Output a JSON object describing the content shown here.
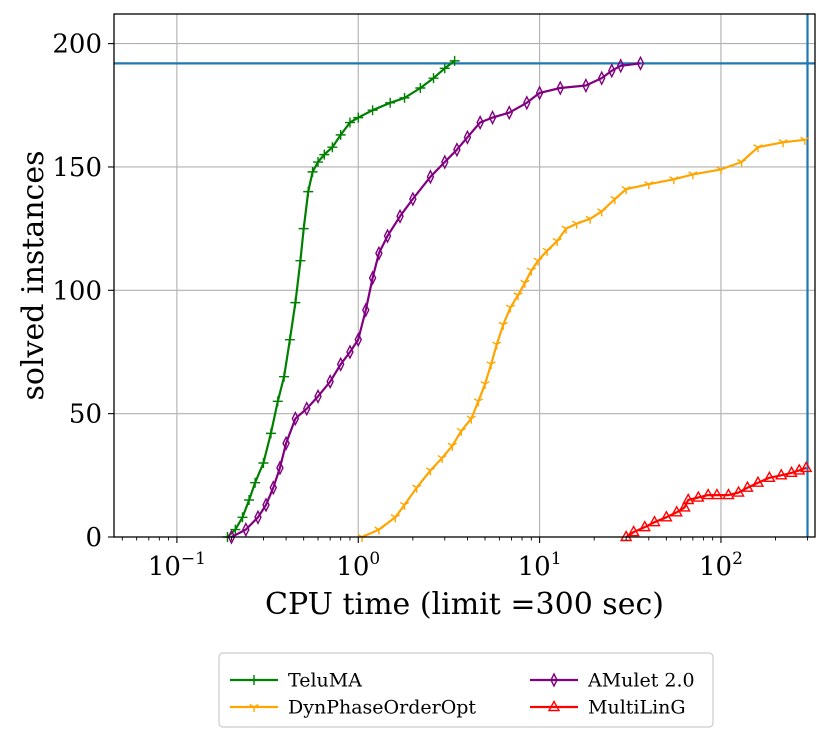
{
  "chart_data": {
    "type": "line",
    "title": "",
    "xlabel": "CPU time (limit =300 sec)",
    "ylabel": "solved instances",
    "x_scale": "log",
    "xlim": [
      0.045,
      330
    ],
    "ylim": [
      0,
      212
    ],
    "x_ticks": [
      {
        "value": 0.1,
        "base": "10",
        "exp": "−1"
      },
      {
        "value": 1,
        "base": "10",
        "exp": "0"
      },
      {
        "value": 10,
        "base": "10",
        "exp": "1"
      },
      {
        "value": 100,
        "base": "10",
        "exp": "2"
      }
    ],
    "y_ticks": [
      0,
      50,
      100,
      150,
      200
    ],
    "grid": true,
    "legend_position": "bottom, outside plot, two columns",
    "reference_lines": [
      {
        "orientation": "horizontal",
        "value": 192,
        "color": "#1f77b4"
      },
      {
        "orientation": "vertical",
        "value": 300,
        "color": "#1f77b4"
      }
    ],
    "series": [
      {
        "name": "TeluMA",
        "color": "#008000",
        "marker": "plus",
        "points": [
          [
            0.19,
            0
          ],
          [
            0.21,
            3
          ],
          [
            0.23,
            8
          ],
          [
            0.25,
            15
          ],
          [
            0.27,
            22
          ],
          [
            0.3,
            30
          ],
          [
            0.33,
            42
          ],
          [
            0.36,
            55
          ],
          [
            0.39,
            65
          ],
          [
            0.42,
            80
          ],
          [
            0.45,
            95
          ],
          [
            0.48,
            112
          ],
          [
            0.5,
            125
          ],
          [
            0.53,
            140
          ],
          [
            0.56,
            148
          ],
          [
            0.6,
            152
          ],
          [
            0.65,
            155
          ],
          [
            0.72,
            158
          ],
          [
            0.8,
            163
          ],
          [
            0.9,
            168
          ],
          [
            1.0,
            170
          ],
          [
            1.2,
            173
          ],
          [
            1.5,
            176
          ],
          [
            1.8,
            178
          ],
          [
            2.2,
            182
          ],
          [
            2.6,
            186
          ],
          [
            3.0,
            190
          ],
          [
            3.4,
            193
          ]
        ]
      },
      {
        "name": "DynPhaseOrderOpt",
        "color": "#ffa500",
        "marker": "tri-down",
        "points": [
          [
            1.05,
            0
          ],
          [
            1.3,
            3
          ],
          [
            1.6,
            8
          ],
          [
            1.8,
            13
          ],
          [
            2.1,
            20
          ],
          [
            2.5,
            27
          ],
          [
            2.9,
            32
          ],
          [
            3.3,
            37
          ],
          [
            3.7,
            43
          ],
          [
            4.2,
            48
          ],
          [
            4.6,
            55
          ],
          [
            5.0,
            62
          ],
          [
            5.4,
            70
          ],
          [
            5.8,
            78
          ],
          [
            6.3,
            86
          ],
          [
            6.9,
            93
          ],
          [
            7.6,
            98
          ],
          [
            8.3,
            103
          ],
          [
            9.0,
            108
          ],
          [
            9.8,
            112
          ],
          [
            11,
            116
          ],
          [
            12.5,
            120
          ],
          [
            14,
            125
          ],
          [
            16,
            127
          ],
          [
            19,
            129
          ],
          [
            22,
            132
          ],
          [
            26,
            137
          ],
          [
            30,
            141
          ],
          [
            40,
            143
          ],
          [
            55,
            145
          ],
          [
            70,
            147
          ],
          [
            100,
            149
          ],
          [
            130,
            152
          ],
          [
            160,
            158
          ],
          [
            220,
            160
          ],
          [
            290,
            161
          ]
        ]
      },
      {
        "name": "AMulet 2.0",
        "color": "#800080",
        "marker": "diamond-thin",
        "points": [
          [
            0.2,
            0
          ],
          [
            0.24,
            3
          ],
          [
            0.28,
            8
          ],
          [
            0.31,
            13
          ],
          [
            0.34,
            20
          ],
          [
            0.37,
            28
          ],
          [
            0.4,
            38
          ],
          [
            0.45,
            48
          ],
          [
            0.52,
            52
          ],
          [
            0.6,
            57
          ],
          [
            0.7,
            63
          ],
          [
            0.8,
            70
          ],
          [
            0.9,
            75
          ],
          [
            1.0,
            80
          ],
          [
            1.1,
            92
          ],
          [
            1.2,
            105
          ],
          [
            1.3,
            115
          ],
          [
            1.45,
            122
          ],
          [
            1.7,
            130
          ],
          [
            2.0,
            137
          ],
          [
            2.5,
            146
          ],
          [
            3.0,
            152
          ],
          [
            3.5,
            157
          ],
          [
            4.0,
            162
          ],
          [
            4.7,
            168
          ],
          [
            5.5,
            170
          ],
          [
            6.8,
            172
          ],
          [
            8.5,
            176
          ],
          [
            10,
            180
          ],
          [
            13,
            182
          ],
          [
            18,
            183
          ],
          [
            22,
            186
          ],
          [
            25,
            189
          ],
          [
            28,
            191
          ],
          [
            36,
            192
          ]
        ]
      },
      {
        "name": "MultiLinG",
        "color": "#ff0000",
        "marker": "triangle-up",
        "points": [
          [
            30,
            0
          ],
          [
            33,
            2
          ],
          [
            38,
            4
          ],
          [
            43,
            6
          ],
          [
            50,
            8
          ],
          [
            57,
            10
          ],
          [
            63,
            12
          ],
          [
            66,
            15
          ],
          [
            75,
            16
          ],
          [
            85,
            17
          ],
          [
            95,
            17
          ],
          [
            110,
            17
          ],
          [
            125,
            18
          ],
          [
            140,
            20
          ],
          [
            160,
            22
          ],
          [
            185,
            24
          ],
          [
            215,
            25
          ],
          [
            245,
            26
          ],
          [
            270,
            27
          ],
          [
            295,
            28
          ]
        ]
      }
    ]
  },
  "legend": {
    "items": [
      {
        "label": "TeluMA",
        "color": "#008000",
        "marker": "plus"
      },
      {
        "label": "AMulet 2.0",
        "color": "#800080",
        "marker": "diamond-thin"
      },
      {
        "label": "DynPhaseOrderOpt",
        "color": "#ffa500",
        "marker": "tri-down"
      },
      {
        "label": "MultiLinG",
        "color": "#ff0000",
        "marker": "triangle-up"
      }
    ]
  }
}
